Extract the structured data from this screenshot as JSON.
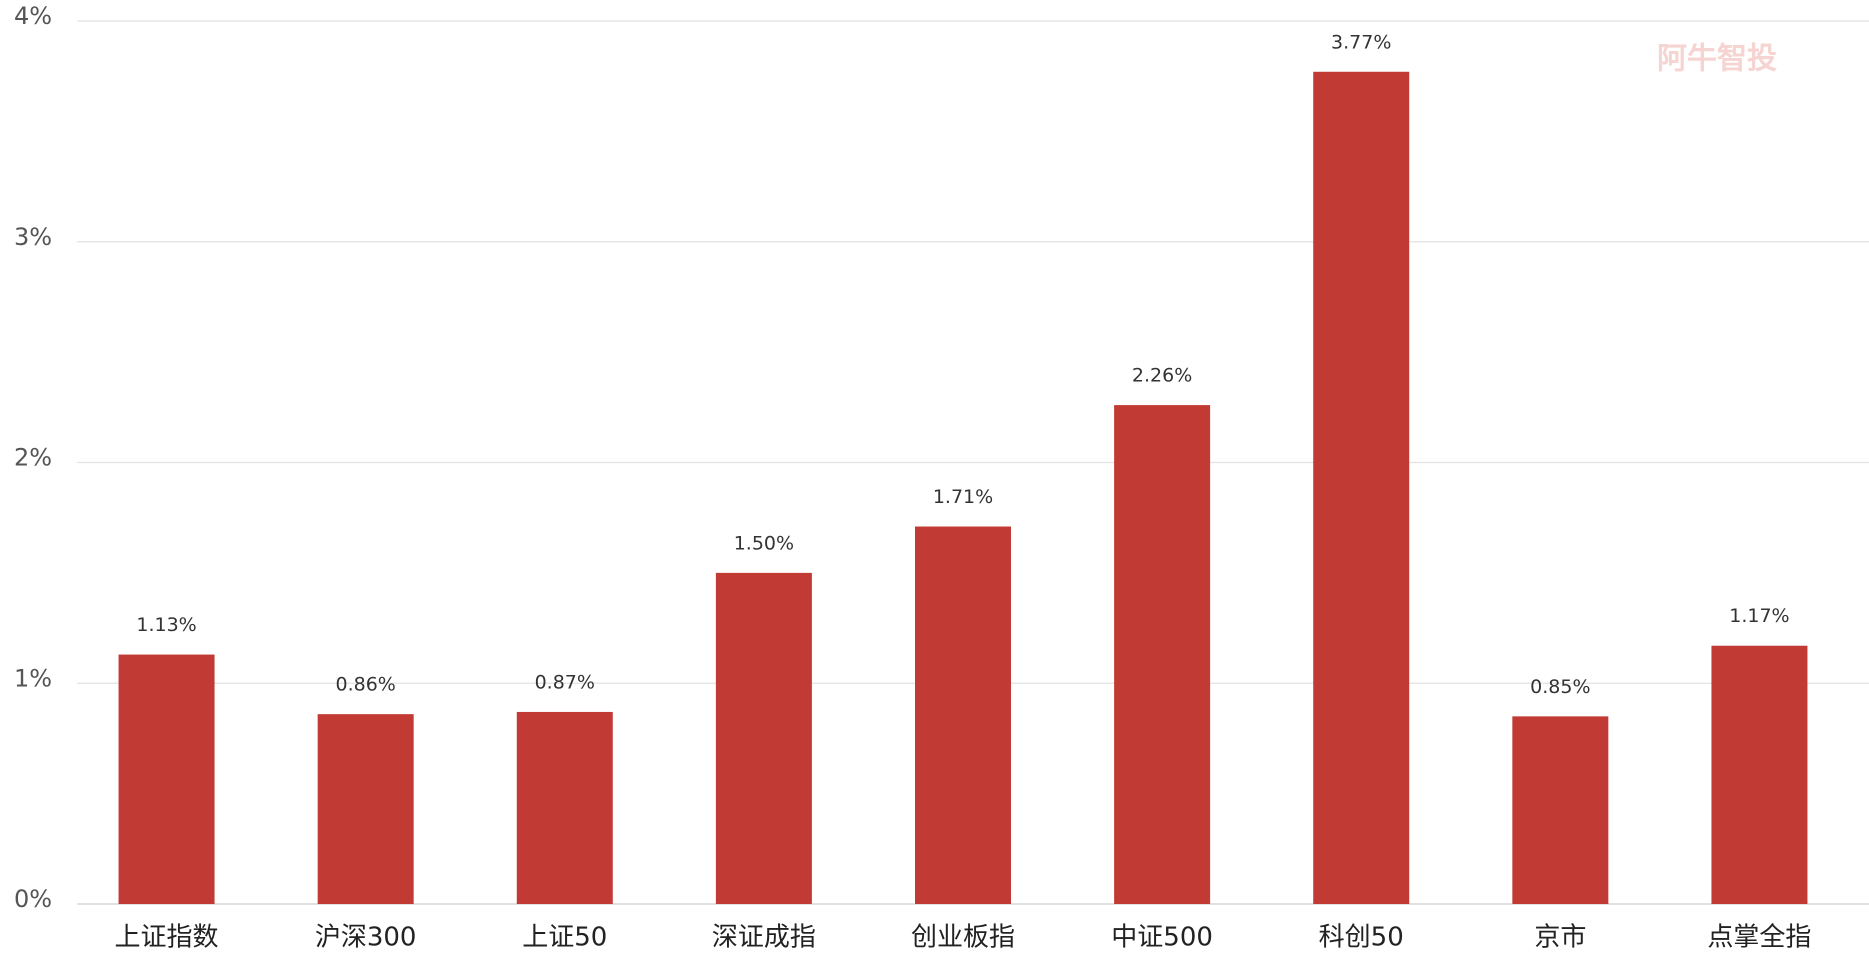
{
  "chart_data": {
    "type": "bar",
    "watermark": "阿牛智投",
    "categories": [
      "上证指数",
      "沪深300",
      "上证50",
      "深证成指",
      "创业板指",
      "中证500",
      "科创50",
      "京市",
      "点掌全指"
    ],
    "values": [
      1.13,
      0.86,
      0.87,
      1.5,
      1.71,
      2.26,
      3.77,
      0.85,
      1.17
    ],
    "value_labels": [
      "1.13%",
      "0.86%",
      "0.87%",
      "1.50%",
      "1.71%",
      "2.26%",
      "3.77%",
      "0.85%",
      "1.17%"
    ],
    "color": "#c13a33",
    "ylim": [
      0,
      4
    ],
    "yticks": [
      {
        "value": 0,
        "label": "0%"
      },
      {
        "value": 1,
        "label": "1%"
      },
      {
        "value": 2,
        "label": "2%"
      },
      {
        "value": 3,
        "label": "3%"
      },
      {
        "value": 4,
        "label": "4%"
      }
    ],
    "grid": true
  }
}
